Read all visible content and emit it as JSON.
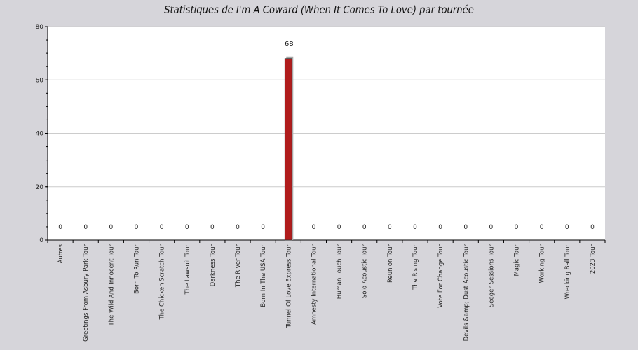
{
  "chart_data": {
    "type": "bar",
    "title": "Statistiques de I'm A Coward (When It Comes To Love) par tournée",
    "xlabel": "",
    "ylabel": "",
    "ylim": [
      0,
      80
    ],
    "yticks": [
      "0",
      "20",
      "40",
      "60",
      "80"
    ],
    "grid": true,
    "categories": [
      "Autres",
      "Greetings From Asbury Park Tour",
      "The Wild And Innocent Tour",
      "Born To Run Tour",
      "The Chicken Scratch Tour",
      "The Lawsuit Tour",
      "Darkness Tour",
      "The River Tour",
      "Born In The USA Tour",
      "Tunnel Of Love Express Tour",
      "Amnesty International Tour",
      "Human Touch Tour",
      "Solo Acoustic Tour",
      "Reunion Tour",
      "The Rising Tour",
      "Vote For Change Tour",
      "Devils &amp; Dust Acoustic Tour",
      "Seeger Sessions Tour",
      "Magic Tour",
      "Working Tour",
      "Wrecking Ball Tour",
      "2023 Tour"
    ],
    "values": [
      0,
      0,
      0,
      0,
      0,
      0,
      0,
      0,
      0,
      68,
      0,
      0,
      0,
      0,
      0,
      0,
      0,
      0,
      0,
      0,
      0,
      0
    ],
    "value_labels": [
      "0",
      "0",
      "0",
      "0",
      "0",
      "0",
      "0",
      "0",
      "0",
      "68",
      "0",
      "0",
      "0",
      "0",
      "0",
      "0",
      "0",
      "0",
      "0",
      "0",
      "0",
      "0"
    ],
    "colors": {
      "bar": "#b01c1c",
      "bar_shadow": "#a9a9a9",
      "plot_bg": "#ffffff",
      "page_bg": "#d6d5da",
      "grid": "#cccccc"
    }
  }
}
